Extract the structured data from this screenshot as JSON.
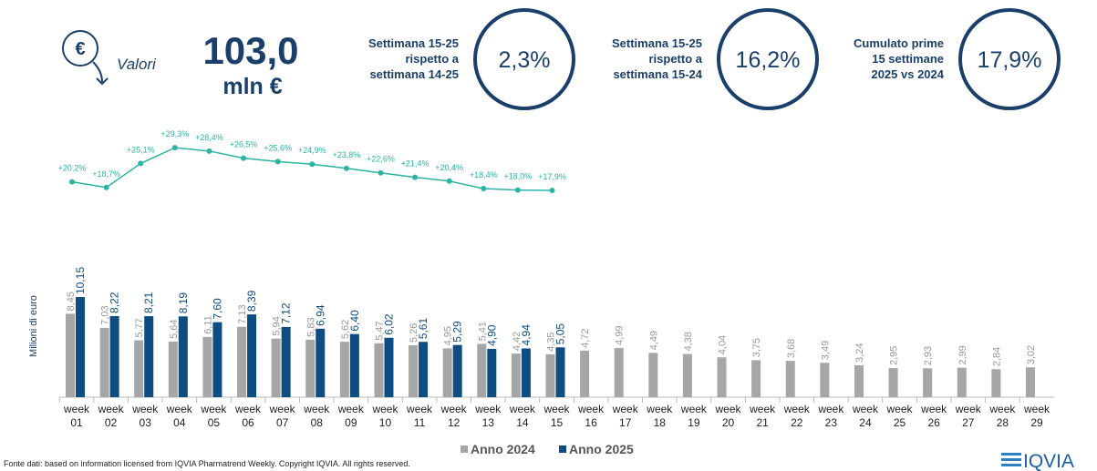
{
  "header": {
    "icon_symbol": "€",
    "label": "Valori",
    "value": "103,0",
    "unit": "mln €"
  },
  "kpis": [
    {
      "lines": [
        "Settimana 15-25",
        "rispetto a",
        "settimana 14-25"
      ],
      "value": "2,3%"
    },
    {
      "lines": [
        "Settimana 15-25",
        "rispetto a",
        "settimana 15-24"
      ],
      "value": "16,2%"
    },
    {
      "lines": [
        "Cumulato prime",
        "15 settimane",
        "2025 vs 2024"
      ],
      "value": "17,9%"
    }
  ],
  "chart_data": {
    "type": "bar",
    "y_axis_label": "Milioni di euro",
    "categories": [
      "week 01",
      "week 02",
      "week 03",
      "week 04",
      "week 05",
      "week 06",
      "week 07",
      "week 08",
      "week 09",
      "week 10",
      "week 11",
      "week 12",
      "week 13",
      "week 14",
      "week 15",
      "week 16",
      "week 17",
      "week 18",
      "week 19",
      "week 20",
      "week 21",
      "week 22",
      "week 23",
      "week 24",
      "week 25",
      "week 26",
      "week 27",
      "week 28",
      "week 29"
    ],
    "series": [
      {
        "name": "Anno 2024",
        "color": "#a6a6a6",
        "values": [
          8.45,
          7.03,
          5.77,
          5.64,
          6.11,
          7.13,
          5.94,
          5.83,
          5.62,
          5.47,
          5.26,
          4.95,
          5.41,
          4.42,
          4.35,
          4.72,
          4.99,
          4.49,
          4.38,
          4.04,
          3.75,
          3.68,
          3.49,
          3.24,
          2.95,
          2.93,
          2.99,
          2.84,
          3.02
        ],
        "value_labels": [
          "8,45",
          "7,03",
          "5,77",
          "5,64",
          "6,11",
          "7,13",
          "5,94",
          "5,83",
          "5,62",
          "5,47",
          "5,26",
          "4,95",
          "5,41",
          "4,42",
          "4,35",
          "4,72",
          "4,99",
          "4,49",
          "4,38",
          "4,04",
          "3,75",
          "3,68",
          "3,49",
          "3,24",
          "2,95",
          "2,93",
          "2,99",
          "2,84",
          "3,02"
        ]
      },
      {
        "name": "Anno 2025",
        "color": "#0f4c81",
        "values": [
          10.15,
          8.22,
          8.21,
          8.19,
          7.6,
          8.39,
          7.12,
          6.94,
          6.4,
          6.02,
          5.61,
          5.29,
          4.9,
          4.94,
          5.05,
          null,
          null,
          null,
          null,
          null,
          null,
          null,
          null,
          null,
          null,
          null,
          null,
          null,
          null
        ],
        "value_labels": [
          "10,15",
          "8,22",
          "8,21",
          "8,19",
          "7,60",
          "8,39",
          "7,12",
          "6,94",
          "6,40",
          "6,02",
          "5,61",
          "5,29",
          "4,90",
          "4,94",
          "5,05",
          null,
          null,
          null,
          null,
          null,
          null,
          null,
          null,
          null,
          null,
          null,
          null,
          null,
          null
        ]
      }
    ],
    "line_series": {
      "type": "line",
      "axis": "y2",
      "color": "#2bb3a3",
      "values": [
        20.2,
        18.7,
        25.1,
        29.3,
        28.4,
        26.5,
        25.6,
        24.9,
        23.8,
        22.6,
        21.4,
        20.4,
        18.4,
        18.0,
        17.9
      ],
      "value_labels": [
        "+20,2%",
        "+18,7%",
        "+25,1%",
        "+29,3%",
        "+28,4%",
        "+26,5%",
        "+25,6%",
        "+24,9%",
        "+23,8%",
        "+22,6%",
        "+21,4%",
        "+20,4%",
        "+18,4%",
        "+18,0%",
        "+17,9%"
      ]
    },
    "ylim": [
      0,
      12
    ],
    "y2lim": [
      15,
      32
    ],
    "legend": "bottom"
  },
  "footer": {
    "source": "Fonte dati: based on information licensed from IQVIA Pharmatrend Weekly. Copyright IQVIA. All rights reserved.",
    "logo": "IQVIA"
  }
}
